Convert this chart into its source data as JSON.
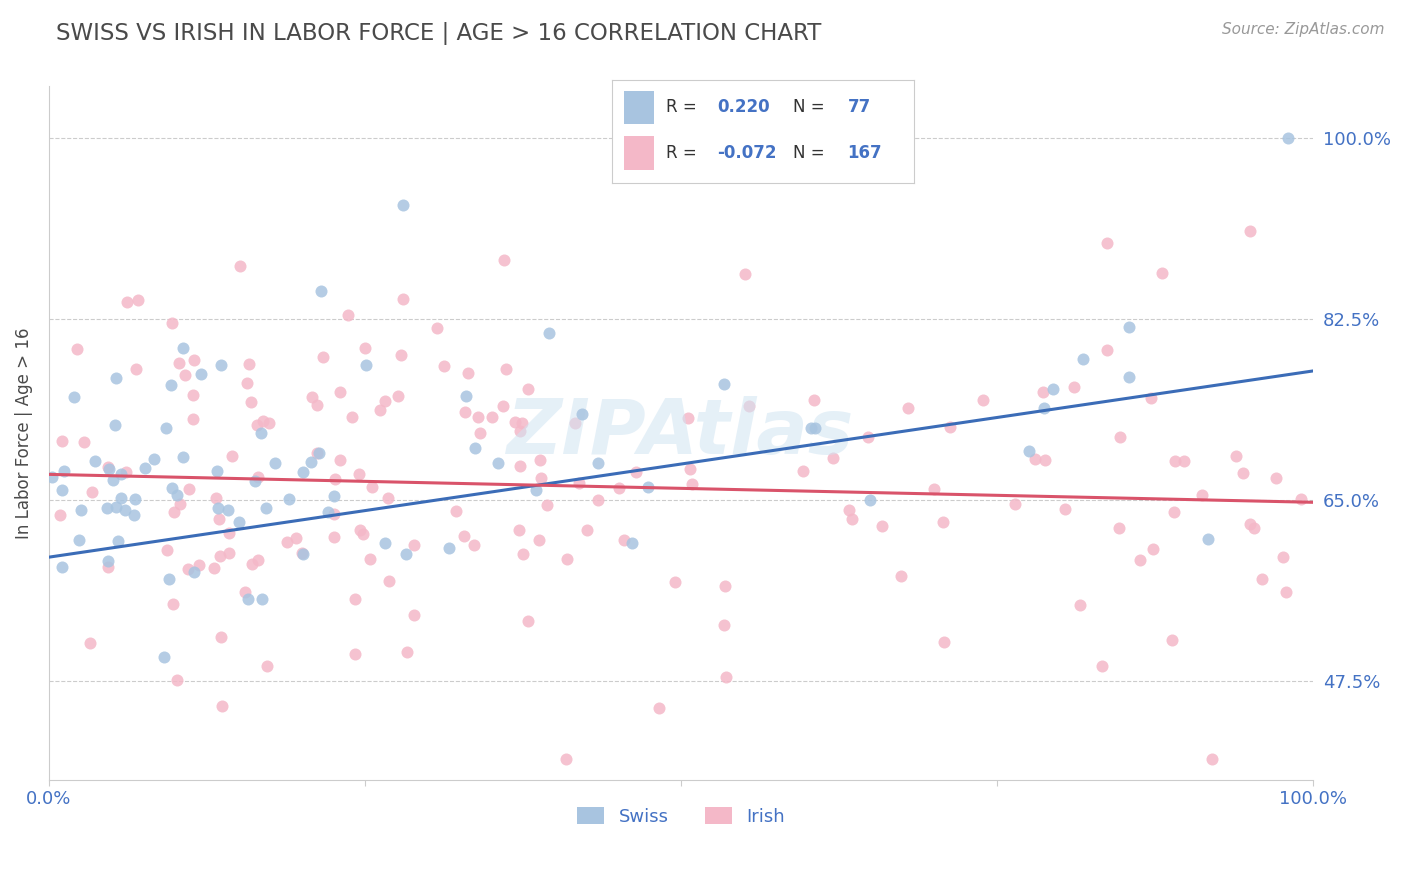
{
  "title": "SWISS VS IRISH IN LABOR FORCE | AGE > 16 CORRELATION CHART",
  "source": "Source: ZipAtlas.com",
  "ylabel": "In Labor Force | Age > 16",
  "xlim": [
    0.0,
    1.0
  ],
  "ylim": [
    0.38,
    1.05
  ],
  "yticks": [
    0.475,
    0.65,
    0.825,
    1.0
  ],
  "ytick_labels": [
    "47.5%",
    "65.0%",
    "82.5%",
    "100.0%"
  ],
  "swiss_R": 0.22,
  "swiss_N": 77,
  "irish_R": -0.072,
  "irish_N": 167,
  "swiss_color": "#a8c4e0",
  "irish_color": "#f4b8c8",
  "swiss_line_color": "#3b6cb7",
  "irish_line_color": "#d9536a",
  "title_color": "#4a4a4a",
  "axis_label_color": "#4a4a4a",
  "tick_label_color": "#4472c4",
  "grid_color": "#cccccc",
  "background_color": "#ffffff",
  "swiss_line_start_y": 0.595,
  "swiss_line_end_y": 0.775,
  "irish_line_start_y": 0.675,
  "irish_line_end_y": 0.648
}
